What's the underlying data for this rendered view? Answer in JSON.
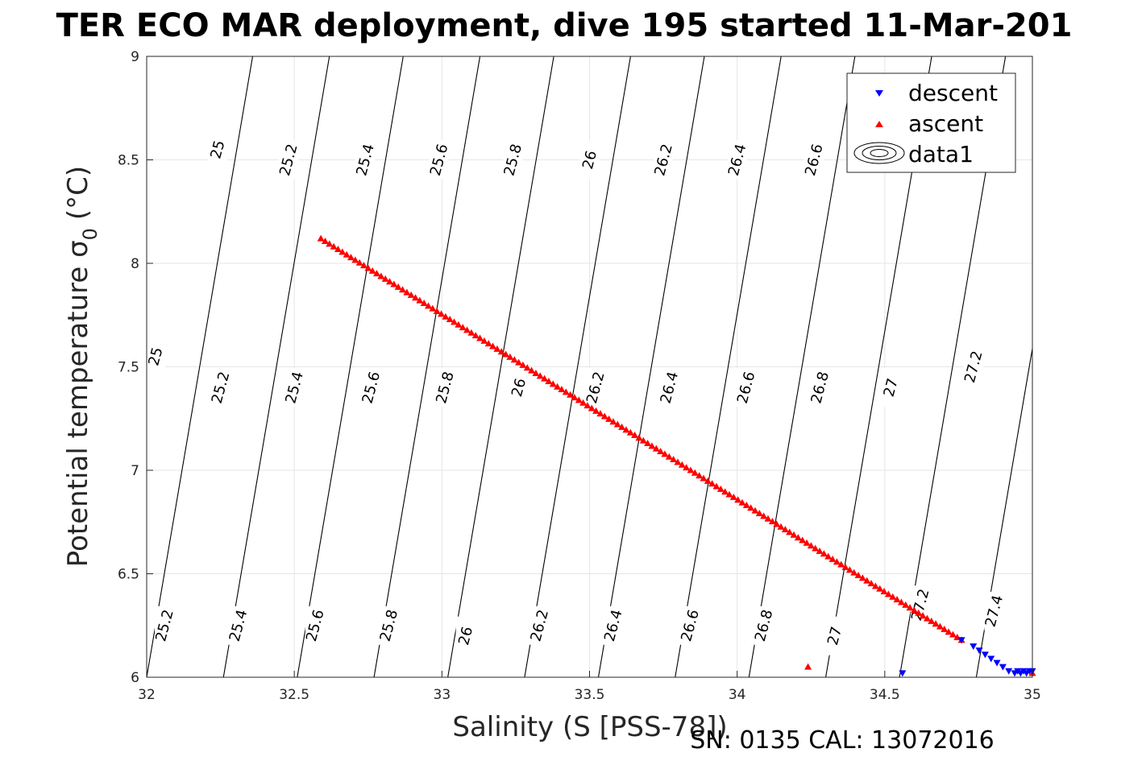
{
  "chart_data": {
    "type": "scatter",
    "title": "TER ECO MAR deployment, dive 195 started 11-Mar-201",
    "xlabel": "Salinity (S [PSS-78])",
    "ylabel": "Potential temperature σ",
    "ylabel_subscript": "0",
    "ylabel_unit": "(°C)",
    "footer": "SN: 0135  CAL: 13072016",
    "xlim": [
      32,
      35
    ],
    "ylim": [
      6,
      9
    ],
    "xticks": [
      "32",
      "32.5",
      "33",
      "33.5",
      "34",
      "34.5",
      "35"
    ],
    "yticks": [
      "6",
      "6.5",
      "7",
      "7.5",
      "8",
      "8.5",
      "9"
    ],
    "grid": true,
    "legend": {
      "placement": "top-right",
      "entries": [
        "descent",
        "ascent",
        "data1"
      ]
    },
    "series": [
      {
        "name": "descent",
        "color": "#0000ff",
        "marker": "triangle-down",
        "points": [
          [
            34.56,
            6.02
          ],
          [
            34.76,
            6.18
          ],
          [
            34.8,
            6.15
          ],
          [
            34.82,
            6.13
          ],
          [
            34.84,
            6.11
          ],
          [
            34.86,
            6.09
          ],
          [
            34.88,
            6.07
          ],
          [
            34.9,
            6.05
          ],
          [
            34.92,
            6.03
          ],
          [
            34.94,
            6.02
          ],
          [
            34.95,
            6.03
          ],
          [
            34.96,
            6.02
          ],
          [
            34.97,
            6.03
          ],
          [
            34.98,
            6.02
          ],
          [
            34.99,
            6.03
          ],
          [
            35.0,
            6.03
          ]
        ]
      },
      {
        "name": "ascent",
        "color": "#ff0000",
        "marker": "triangle-up",
        "start": [
          32.59,
          8.12
        ],
        "end": [
          34.76,
          6.18
        ],
        "count": 150,
        "extra_points": [
          [
            34.24,
            6.05
          ],
          [
            35.0,
            6.02
          ]
        ]
      }
    ],
    "contours": {
      "name": "data1",
      "levels": [
        {
          "level": 25.0,
          "s": 32.0
        },
        {
          "level": 25.2,
          "s": 32.26
        },
        {
          "level": 25.4,
          "s": 32.51
        },
        {
          "level": 25.6,
          "s": 32.77
        },
        {
          "level": 25.8,
          "s": 33.02
        },
        {
          "level": 26.0,
          "s": 33.28
        },
        {
          "level": 26.2,
          "s": 33.53
        },
        {
          "level": 26.4,
          "s": 33.79
        },
        {
          "level": 26.6,
          "s": 34.04
        },
        {
          "level": 26.8,
          "s": 34.3
        },
        {
          "level": 27.0,
          "s": 34.55
        },
        {
          "level": 27.2,
          "s": 34.81
        },
        {
          "level": 27.4,
          "s": 35.06
        }
      ],
      "labels": [
        [
          "25",
          32.24,
          8.55
        ],
        [
          "25.2",
          32.48,
          8.5
        ],
        [
          "25.4",
          32.74,
          8.5
        ],
        [
          "25.6",
          32.99,
          8.5
        ],
        [
          "25.8",
          33.24,
          8.5
        ],
        [
          "26",
          33.5,
          8.5
        ],
        [
          "26.2",
          33.75,
          8.5
        ],
        [
          "26.4",
          34.0,
          8.5
        ],
        [
          "26.6",
          34.26,
          8.5
        ],
        [
          "25",
          32.03,
          7.55
        ],
        [
          "25.2",
          32.25,
          7.4
        ],
        [
          "25.4",
          32.5,
          7.4
        ],
        [
          "25.6",
          32.76,
          7.4
        ],
        [
          "25.8",
          33.01,
          7.4
        ],
        [
          "26",
          33.26,
          7.4
        ],
        [
          "26.2",
          33.52,
          7.4
        ],
        [
          "26.4",
          33.77,
          7.4
        ],
        [
          "26.6",
          34.03,
          7.4
        ],
        [
          "26.8",
          34.28,
          7.4
        ],
        [
          "27",
          34.52,
          7.4
        ],
        [
          "27.2",
          34.8,
          7.5
        ],
        [
          "25.2",
          32.06,
          6.25
        ],
        [
          "25.4",
          32.31,
          6.25
        ],
        [
          "25.6",
          32.57,
          6.25
        ],
        [
          "25.8",
          32.82,
          6.25
        ],
        [
          "26",
          33.08,
          6.2
        ],
        [
          "26.2",
          33.33,
          6.25
        ],
        [
          "26.4",
          33.58,
          6.25
        ],
        [
          "26.6",
          33.84,
          6.25
        ],
        [
          "26.8",
          34.09,
          6.25
        ],
        [
          "27",
          34.33,
          6.2
        ],
        [
          "27.2",
          34.62,
          6.35
        ],
        [
          "27.4",
          34.87,
          6.32
        ]
      ]
    }
  }
}
